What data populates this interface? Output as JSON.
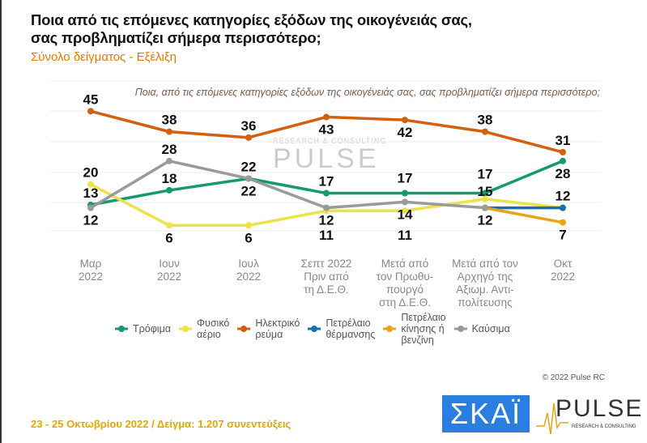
{
  "header": {
    "title_line1": "Ποια από τις επόμενες κατηγορίες εξόδων της οικογένειάς σας,",
    "title_line2": "σας προβληματίζει σήμερα περισσότερο;",
    "subtitle": "Σύνολο δείγματος - Εξέλιξη"
  },
  "chart_data": {
    "type": "line",
    "title": "Ποια, από τις επόμενες κατηγορίες εξόδων της οικογένειάς σας, σας προβληματίζει σήμερα περισσότερο;",
    "categories": [
      "Μαρ\n2022",
      "Ιουν\n2022",
      "Ιουλ\n2022",
      "Σεπτ 2022\nΠριν από\nτη Δ.Ε.Θ.",
      "Μετά από\nτον Πρωθυ-\nπουργό\nστη Δ.Ε.Θ.",
      "Μετά από τον\nΑρχηγό της\nΑξιωμ. Αντι-\nπολίτευσης",
      "Οκτ\n2022"
    ],
    "ylim": [
      0,
      50
    ],
    "grid": true,
    "legend_position": "bottom",
    "series": [
      {
        "name": "Τρόφιμα",
        "color": "#149a6e",
        "values": [
          13,
          18,
          22,
          17,
          17,
          17,
          28
        ]
      },
      {
        "name": "Φυσικό\nαέριο",
        "color": "#ece34a",
        "values": [
          20,
          6,
          6,
          11,
          11,
          15,
          12
        ]
      },
      {
        "name": "Ηλεκτρικό\nρεύμα",
        "color": "#d2600f",
        "values": [
          45,
          38,
          36,
          43,
          42,
          38,
          31
        ]
      },
      {
        "name": "Πετρέλαιο\nθέρμανσης",
        "color": "#1a6fae",
        "values": [
          null,
          null,
          null,
          null,
          null,
          12,
          12
        ]
      },
      {
        "name": "Πετρέλαιο\nκίνησης ή\nβενζίνη",
        "color": "#e8a317",
        "values": [
          null,
          null,
          null,
          null,
          null,
          12,
          7
        ]
      },
      {
        "name": "Καύσιμα",
        "color": "#9a9a9a",
        "values": [
          12,
          28,
          22,
          12,
          14,
          12,
          null
        ]
      }
    ]
  },
  "watermark": {
    "word": "PULSE",
    "sub": "RESEARCH & CONSULTING"
  },
  "copyright": "© 2022 Pulse RC",
  "footer": "23 - 25  Οκτωβρίου  2022  /  Δείγμα:  1.207 συνεντεύξεις",
  "logos": {
    "skai": "ΣΚΑΪ",
    "pulse": "PULSE",
    "pulse_sub": "RESEARCH & CONSULTING"
  }
}
